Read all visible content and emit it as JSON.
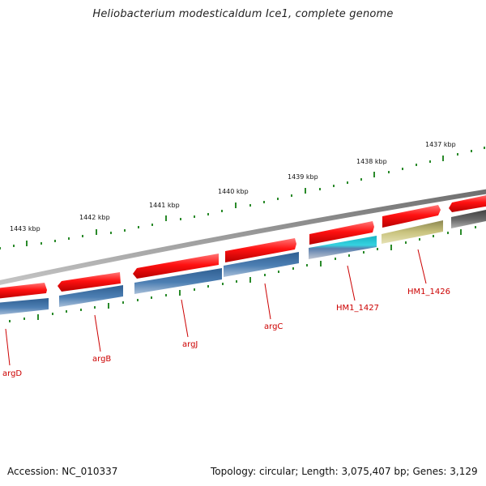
{
  "title": "Heliobacterium modesticaldum Ice1, complete genome",
  "footer": {
    "accession": "Accession: NC_010337",
    "topology": "Topology: circular; Length: 3,075,407 bp; Genes: 3,129"
  },
  "scale": {
    "kbp_labels": [
      "1443 kbp",
      "1442 kbp",
      "1441 kbp",
      "1440 kbp",
      "1439 kbp",
      "1438 kbp",
      "1437 kbp"
    ]
  },
  "genes": [
    {
      "name": "argD",
      "category": "blue"
    },
    {
      "name": "argB",
      "category": "blue"
    },
    {
      "name": "argJ",
      "category": "blue"
    },
    {
      "name": "argC",
      "category": "blue"
    },
    {
      "name": "HM1_1427",
      "category": "cyan"
    },
    {
      "name": "HM1_1426",
      "category": "olive"
    },
    {
      "name": "",
      "category": "gray"
    }
  ],
  "colors": {
    "red_arrow": "#ee1111",
    "blue_gene": "#4a78a8",
    "cyan_gene": "#22bfcf",
    "olive_gene": "#b8b26a",
    "gray_gene": "#5a5a5a",
    "backbone": "#8a8a8a",
    "ticks": "#2a8a2a",
    "gene_label": "#cc0000"
  }
}
